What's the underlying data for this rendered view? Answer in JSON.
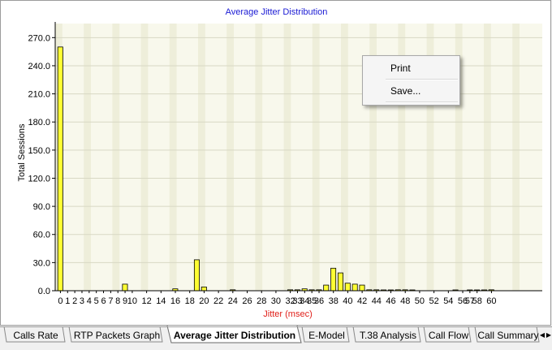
{
  "chart_data": {
    "type": "bar",
    "title": "Average Jitter Distribution",
    "xlabel": "Jitter (msec)",
    "ylabel": "Total Sessions",
    "ylim": [
      0,
      285
    ],
    "y_ticks": [
      "0.0",
      "30.0",
      "60.0",
      "90.0",
      "120.0",
      "150.0",
      "180.0",
      "210.0",
      "240.0",
      "270.0"
    ],
    "x_tick_labels": [
      "0",
      "1",
      "2",
      "3",
      "4",
      "5",
      "6",
      "7",
      "8",
      "9",
      "10",
      "12",
      "14",
      "16",
      "18",
      "20",
      "22",
      "24",
      "26",
      "28",
      "30",
      "32",
      "33",
      "34",
      "35",
      "36",
      "38",
      "40",
      "42",
      "44",
      "46",
      "48",
      "50",
      "52",
      "54",
      "56",
      "57",
      "58",
      "60"
    ],
    "x": [
      0,
      9,
      16,
      19,
      20,
      24,
      32,
      33,
      34,
      35,
      36,
      37,
      38,
      39,
      40,
      41,
      42,
      43,
      44,
      45,
      46,
      47,
      48,
      49,
      55,
      57,
      58,
      59,
      60
    ],
    "values": [
      260,
      7,
      2,
      33,
      4,
      1,
      1,
      1,
      2,
      1,
      1,
      6,
      24,
      19,
      8,
      7,
      6,
      1,
      1,
      0.5,
      0.5,
      1,
      1,
      0.5,
      0.5,
      0.5,
      0.5,
      0.5,
      1
    ],
    "bar_color": "#ffff33",
    "bar_stroke": "#000000",
    "grid": true,
    "legend": "none"
  },
  "context_menu": {
    "items": [
      {
        "label": "Print"
      },
      {
        "label": "Save..."
      }
    ]
  },
  "tabs": [
    {
      "label": "Calls Rate",
      "active": false
    },
    {
      "label": "RTP Packets Graph",
      "active": false
    },
    {
      "label": "Average Jitter Distribution",
      "active": true
    },
    {
      "label": "E-Model",
      "active": false
    },
    {
      "label": "T.38 Analysis",
      "active": false
    },
    {
      "label": "Call Flow",
      "active": false
    },
    {
      "label": "Call Summary",
      "active": false
    }
  ],
  "scroll_arrows": {
    "left": "◀",
    "right": "▶"
  }
}
